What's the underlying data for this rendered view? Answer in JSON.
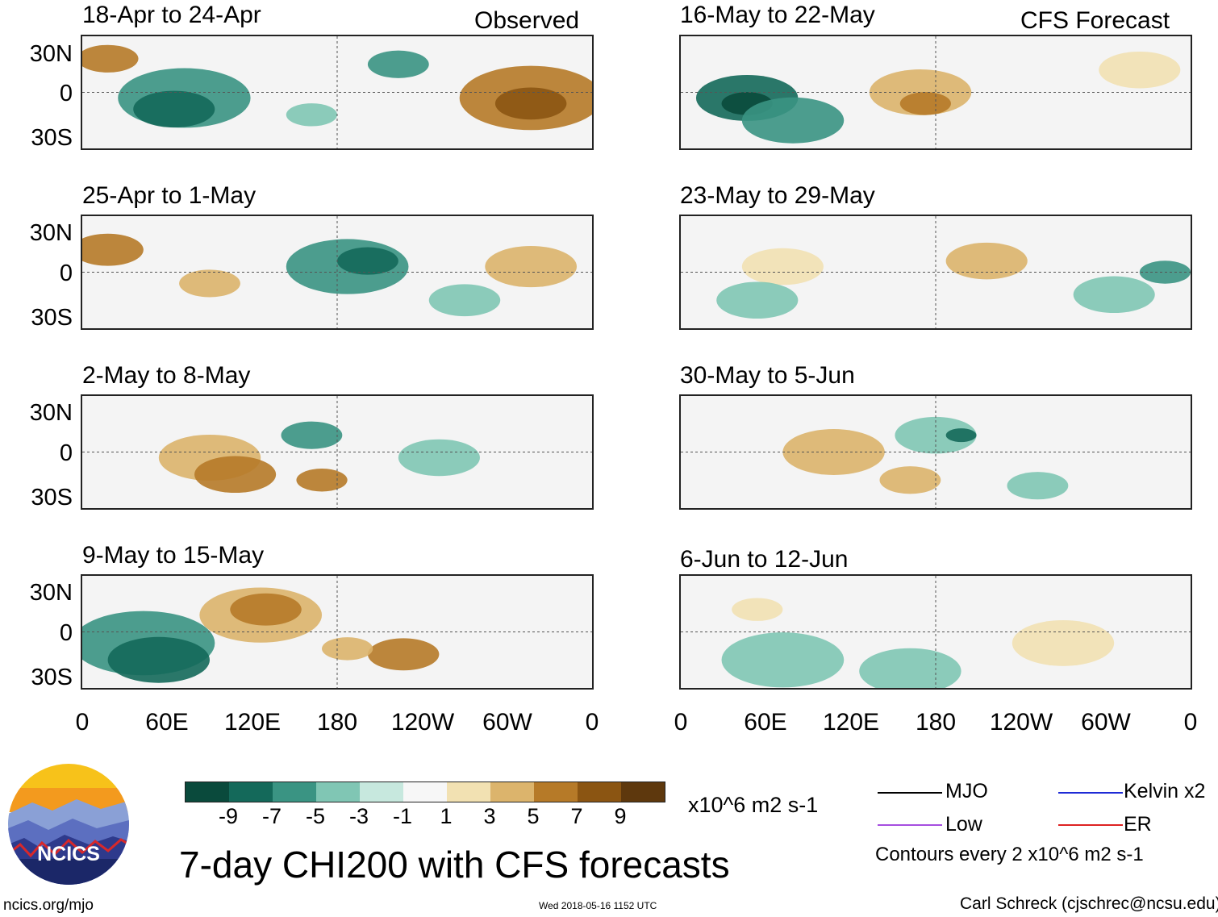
{
  "figure": {
    "title": "7-day CHI200 with CFS forecasts",
    "observed_label": "Observed",
    "forecast_label": "CFS Forecast",
    "source_url": "ncics.org/mjo",
    "timestamp": "Wed 2018-05-16 1152 UTC",
    "author": "Carl Schreck (cjschrec@ncsu.edu)",
    "logo_text": "NCICS"
  },
  "chart_data": {
    "type": "heatmap",
    "variable": "7-day CHI200 anomaly",
    "x_ticks": [
      "0",
      "60E",
      "120E",
      "180",
      "120W",
      "60W",
      "0"
    ],
    "y_ticks": [
      "30N",
      "0",
      "30S"
    ],
    "lon_range": [
      0,
      360
    ],
    "lat_range": [
      -40,
      40
    ],
    "panels": [
      {
        "column": "Observed",
        "period": "18-Apr to 24-Apr"
      },
      {
        "column": "Observed",
        "period": "25-Apr to 1-May"
      },
      {
        "column": "Observed",
        "period": "2-May to 8-May"
      },
      {
        "column": "Observed",
        "period": "9-May to 15-May"
      },
      {
        "column": "CFS Forecast",
        "period": "16-May to 22-May"
      },
      {
        "column": "CFS Forecast",
        "period": "23-May to 29-May"
      },
      {
        "column": "CFS Forecast",
        "period": "30-May to 5-Jun"
      },
      {
        "column": "CFS Forecast",
        "period": "6-Jun to 12-Jun"
      }
    ],
    "colorbar": {
      "ticks": [
        "-9",
        "-7",
        "-5",
        "-3",
        "-1",
        "1",
        "3",
        "5",
        "7",
        "9"
      ],
      "colors": [
        "#0a4a3c",
        "#14695a",
        "#3a9483",
        "#80c6b4",
        "#c7e8de",
        "#f7f7f7",
        "#f2e1b2",
        "#dcb46c",
        "#b67a28",
        "#8b5512",
        "#5e380d"
      ],
      "units": "x10^6 m2 s-1"
    },
    "legend": [
      {
        "label": "MJO",
        "color": "#000000"
      },
      {
        "label": "Kelvin x2",
        "color": "#1f2bd6"
      },
      {
        "label": "Low",
        "color": "#a64ee0"
      },
      {
        "label": "ER",
        "color": "#dd2222"
      }
    ],
    "contour_note": "Contours every 2 x10^6 m2 s-1"
  }
}
